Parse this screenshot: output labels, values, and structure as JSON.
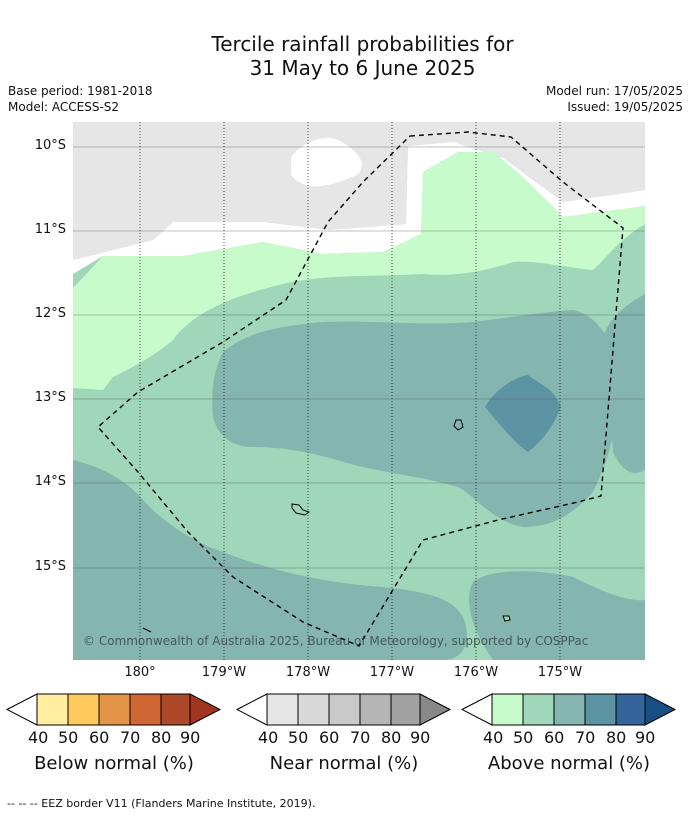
{
  "title_line1": "Tercile rainfall probabilities for",
  "title_line2": "31 May to 6 June 2025",
  "base_period": "Base period: 1981-2018",
  "model": "Model: ACCESS-S2",
  "model_run": "Model run: 17/05/2025",
  "issued": "Issued: 19/05/2025",
  "lat_labels": [
    "10°S",
    "11°S",
    "12°S",
    "13°S",
    "14°S",
    "15°S"
  ],
  "lon_labels": [
    "180°",
    "179°W",
    "178°W",
    "177°W",
    "176°W",
    "175°W"
  ],
  "copyright": "© Commonwealth of Australia 2025, Bureau of Meteorology, supported by COSPPac",
  "legends": {
    "below": {
      "caption": "Below normal (%)",
      "ticks": [
        "40",
        "50",
        "60",
        "70",
        "80",
        "90"
      ],
      "colors": [
        "#ffffff",
        "#ffeea0",
        "#ffc95d",
        "#e39447",
        "#d06634",
        "#ad4828",
        "#a03520"
      ]
    },
    "near": {
      "caption": "Near normal (%)",
      "ticks": [
        "40",
        "50",
        "60",
        "70",
        "80",
        "90"
      ],
      "colors": [
        "#ffffff",
        "#e6e6e6",
        "#d8d8d8",
        "#c9c9c9",
        "#b5b5b5",
        "#a2a2a2",
        "#888888"
      ]
    },
    "above": {
      "caption": "Above normal (%)",
      "ticks": [
        "40",
        "50",
        "60",
        "70",
        "80",
        "90"
      ],
      "colors": [
        "#ffffff",
        "#c8fbcb",
        "#a0d6b9",
        "#84b5ae",
        "#5c94a4",
        "#34659a",
        "#174f84"
      ]
    }
  },
  "footnote": "--  --  -- EEZ border V11 (Flanders Marine Institute, 2019)."
}
